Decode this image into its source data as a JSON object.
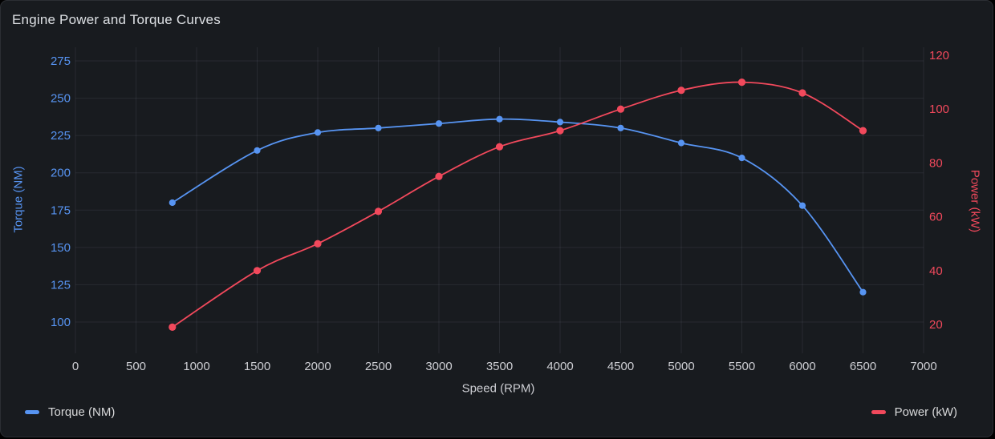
{
  "panel": {
    "title": "Engine Power and Torque Curves"
  },
  "colors": {
    "torque_blue": "#5794f2",
    "power_red": "#f2495c",
    "text_light": "#cdced3",
    "legend_text": "#d8d9da",
    "panel_bg": "#181b1f",
    "grid": "rgba(204,204,220,0.09)"
  },
  "legend": {
    "torque": {
      "label": "Torque (NM)",
      "color": "#5794f2"
    },
    "power": {
      "label": "Power (kW)",
      "color": "#f2495c"
    }
  },
  "chart_data": {
    "type": "line",
    "title": "Engine Power and Torque Curves",
    "xlabel": "Speed (RPM)",
    "x": [
      800,
      1500,
      2000,
      2500,
      3000,
      3500,
      4000,
      4500,
      5000,
      5500,
      6000,
      6500
    ],
    "x_ticks": [
      0,
      500,
      1000,
      1500,
      2000,
      2500,
      3000,
      3500,
      4000,
      4500,
      5000,
      5500,
      6000,
      6500,
      7000
    ],
    "x_range": [
      0,
      7000
    ],
    "grid": true,
    "legend_position": "bottom",
    "point_markers": true,
    "line_interpolation": "smooth",
    "y_left": {
      "label": "Torque (NM)",
      "color": "#5794f2",
      "ticks": [
        100,
        125,
        150,
        175,
        200,
        225,
        250,
        275
      ],
      "min": 100,
      "max": 275
    },
    "y_right": {
      "label": "Power (kW)",
      "color": "#f2495c",
      "ticks": [
        20,
        40,
        60,
        80,
        100,
        120
      ],
      "min": 20,
      "max": 120
    },
    "series": [
      {
        "name": "Torque (NM)",
        "axis": "left",
        "color": "#5794f2",
        "values": [
          180,
          215,
          227,
          230,
          233,
          236,
          234,
          230,
          220,
          210,
          178,
          120
        ]
      },
      {
        "name": "Power (kW)",
        "axis": "right",
        "color": "#f2495c",
        "values": [
          19,
          40,
          50,
          62,
          75,
          86,
          92,
          100,
          107,
          110,
          106,
          92
        ]
      }
    ]
  }
}
